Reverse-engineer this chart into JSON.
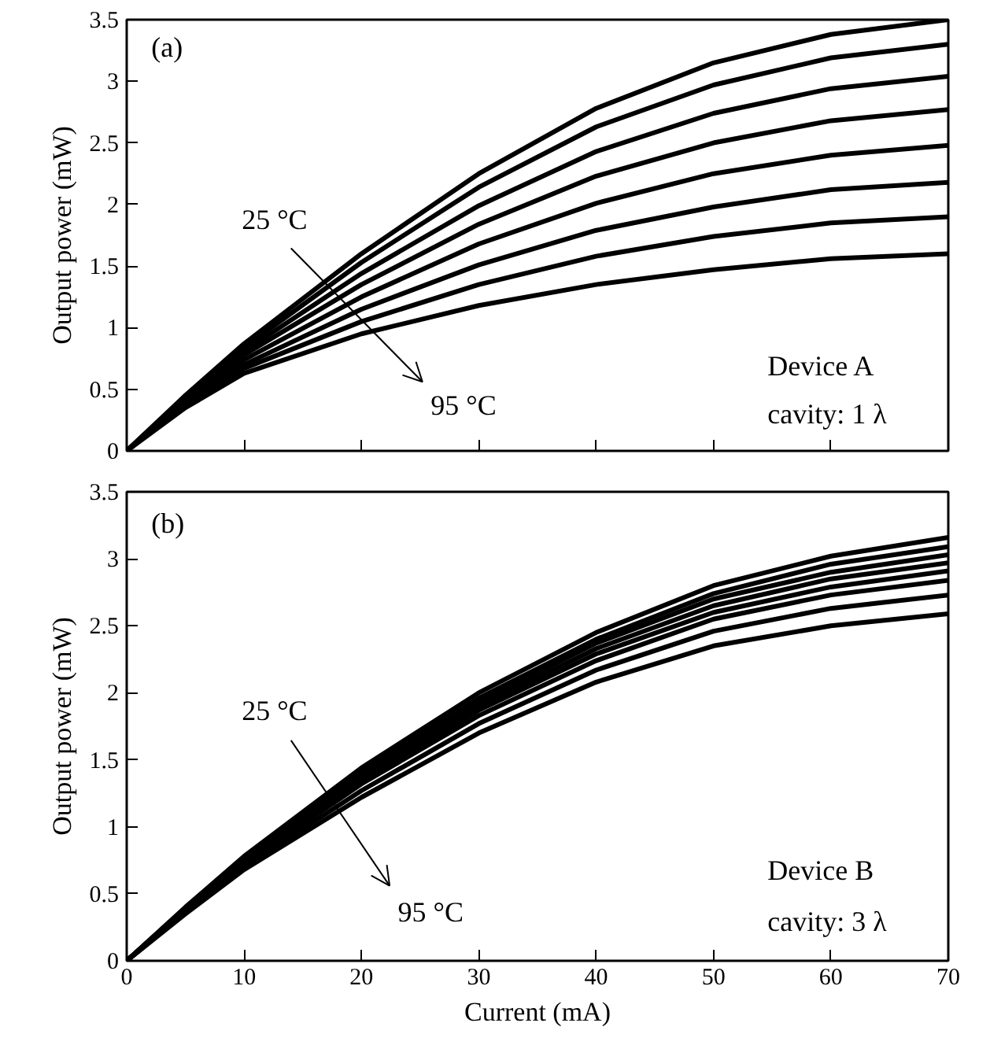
{
  "chart_data": [
    {
      "type": "line",
      "ylabel": "Output power (mW)",
      "x": [
        0,
        5,
        10,
        20,
        30,
        40,
        50,
        60,
        70
      ],
      "xlim": [
        0,
        70
      ],
      "ylim": [
        0,
        3.5
      ],
      "xticks": [
        0,
        10,
        20,
        30,
        40,
        50,
        60,
        70
      ],
      "yticks": [
        0,
        0.5,
        1,
        1.5,
        2,
        2.5,
        3,
        3.5
      ],
      "tick_labels": "y",
      "grid": false,
      "annotations": [
        "(a)",
        "25 °C",
        "95 °C",
        "Device A",
        "cavity: 1 λ"
      ],
      "series": [
        {
          "color": "#000000",
          "values": [
            0,
            0.45,
            0.87,
            1.6,
            2.25,
            2.78,
            3.15,
            3.38,
            3.5
          ]
        },
        {
          "color": "#000000",
          "values": [
            0,
            0.44,
            0.84,
            1.53,
            2.14,
            2.63,
            2.97,
            3.19,
            3.3
          ]
        },
        {
          "color": "#000000",
          "values": [
            0,
            0.43,
            0.81,
            1.44,
            1.99,
            2.43,
            2.74,
            2.94,
            3.04
          ]
        },
        {
          "color": "#000000",
          "values": [
            0,
            0.41,
            0.78,
            1.35,
            1.84,
            2.23,
            2.5,
            2.68,
            2.77
          ]
        },
        {
          "color": "#000000",
          "values": [
            0,
            0.4,
            0.74,
            1.25,
            1.68,
            2.01,
            2.25,
            2.4,
            2.48
          ]
        },
        {
          "color": "#000000",
          "values": [
            0,
            0.38,
            0.7,
            1.15,
            1.51,
            1.79,
            1.98,
            2.12,
            2.18
          ]
        },
        {
          "color": "#000000",
          "values": [
            0,
            0.37,
            0.67,
            1.05,
            1.35,
            1.58,
            1.74,
            1.85,
            1.9
          ]
        },
        {
          "color": "#000000",
          "values": [
            0,
            0.35,
            0.63,
            0.95,
            1.18,
            1.35,
            1.47,
            1.56,
            1.6
          ]
        }
      ]
    },
    {
      "type": "line",
      "xlabel": "Current (mA)",
      "ylabel": "Output power (mW)",
      "x": [
        0,
        5,
        10,
        20,
        30,
        40,
        50,
        60,
        70
      ],
      "xlim": [
        0,
        70
      ],
      "ylim": [
        0,
        3.5
      ],
      "xticks": [
        0,
        10,
        20,
        30,
        40,
        50,
        60,
        70
      ],
      "yticks": [
        0,
        0.5,
        1,
        1.5,
        2,
        2.5,
        3,
        3.5
      ],
      "grid": false,
      "annotations": [
        "(b)",
        "25 °C",
        "95 °C",
        "Device B",
        "cavity: 3 λ"
      ],
      "series": [
        {
          "color": "#000000",
          "values": [
            0,
            0.4,
            0.78,
            1.44,
            2.0,
            2.45,
            2.8,
            3.02,
            3.16
          ]
        },
        {
          "color": "#000000",
          "values": [
            0,
            0.39,
            0.77,
            1.41,
            1.96,
            2.4,
            2.74,
            2.96,
            3.09
          ]
        },
        {
          "color": "#000000",
          "values": [
            0,
            0.39,
            0.76,
            1.39,
            1.93,
            2.37,
            2.7,
            2.9,
            3.03
          ]
        },
        {
          "color": "#000000",
          "values": [
            0,
            0.38,
            0.75,
            1.37,
            1.9,
            2.33,
            2.65,
            2.85,
            2.97
          ]
        },
        {
          "color": "#000000",
          "values": [
            0,
            0.38,
            0.74,
            1.34,
            1.87,
            2.29,
            2.6,
            2.79,
            2.91
          ]
        },
        {
          "color": "#000000",
          "values": [
            0,
            0.37,
            0.72,
            1.32,
            1.83,
            2.24,
            2.55,
            2.73,
            2.84
          ]
        },
        {
          "color": "#000000",
          "values": [
            0,
            0.36,
            0.7,
            1.27,
            1.77,
            2.17,
            2.46,
            2.63,
            2.73
          ]
        },
        {
          "color": "#000000",
          "values": [
            0,
            0.35,
            0.68,
            1.22,
            1.7,
            2.08,
            2.35,
            2.5,
            2.59
          ]
        }
      ]
    }
  ]
}
